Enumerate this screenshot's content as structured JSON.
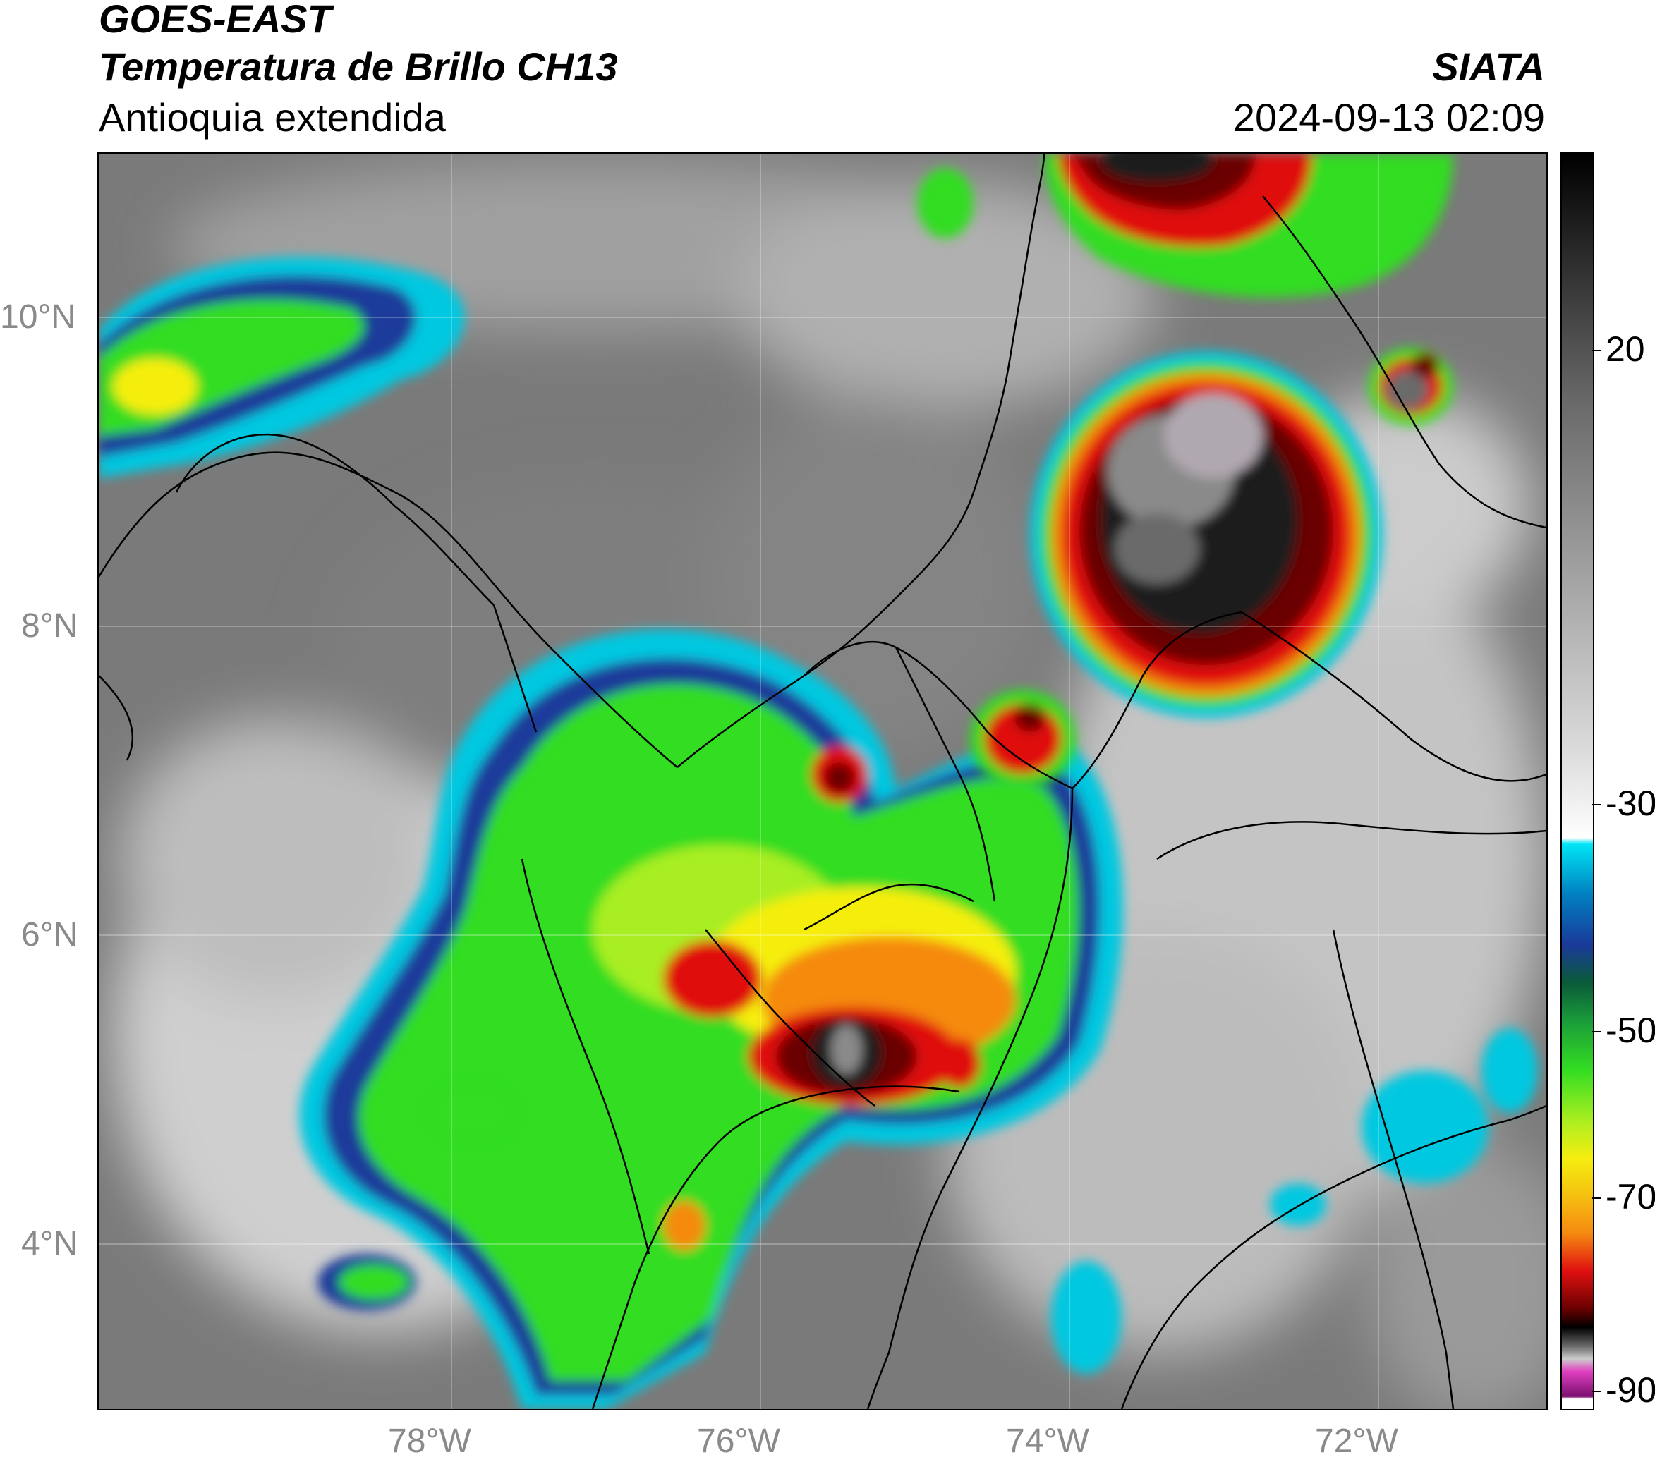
{
  "header": {
    "title_line1": "GOES-EAST",
    "title_line2": "Temperatura de Brillo CH13",
    "subtitle": "Antioquia extendida",
    "organization": "SIATA",
    "datetime": "2024-09-13 02:09"
  },
  "map": {
    "lat_labels": [
      "10°N",
      "8°N",
      "6°N",
      "4°N"
    ],
    "lon_labels": [
      "78°W",
      "76°W",
      "74°W",
      "72°W"
    ]
  },
  "colorbar": {
    "labels": [
      "20",
      "-30",
      "-50",
      "-70",
      "-90"
    ],
    "colors": {
      "warm": "#2a2a2a",
      "cold_white": "#ffffff",
      "cyan": "#00e5f5",
      "blue": "#1a3a9a",
      "green": "#33dd22",
      "yellow": "#f5ee10",
      "orange": "#f58a10",
      "red": "#e01010",
      "dark_red": "#6a0000",
      "black": "#000000",
      "magenta": "#e040c0",
      "purple": "#7a1070"
    }
  }
}
